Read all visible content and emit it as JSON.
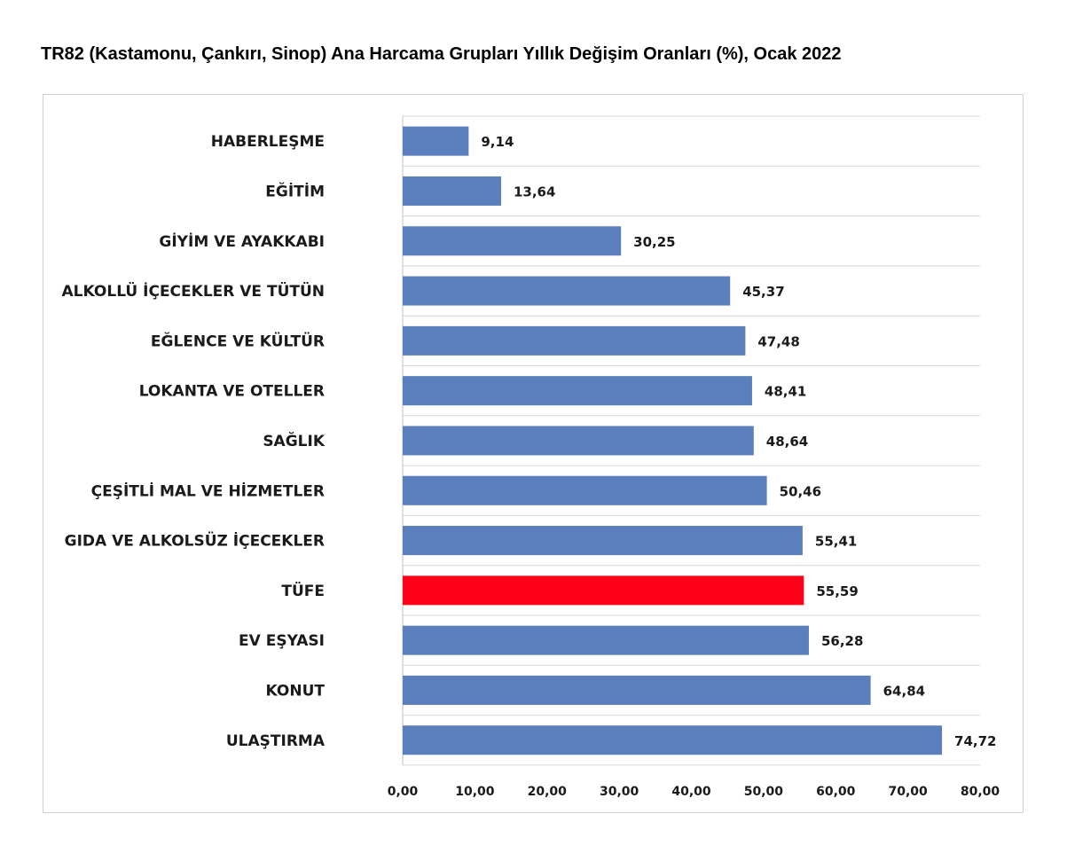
{
  "chart_data": {
    "type": "bar",
    "orientation": "horizontal",
    "title": "TR82 (Kastamonu, Çankırı, Sinop) Ana Harcama Grupları Yıllık Değişim Oranları (%), Ocak 2022",
    "categories": [
      "HABERLEŞME",
      "EĞİTİM",
      "GİYİM VE AYAKKABI",
      "ALKOLLÜ İÇECEKLER VE TÜTÜN",
      "EĞLENCE VE KÜLTÜR",
      "LOKANTA VE OTELLER",
      "SAĞLIK",
      "ÇEŞİTLİ MAL VE HİZMETLER",
      "GIDA VE ALKOLSÜZ İÇECEKLER",
      "TÜFE",
      "EV EŞYASI",
      "KONUT",
      "ULAŞTIRMA"
    ],
    "values": [
      9.14,
      13.64,
      30.25,
      45.37,
      47.48,
      48.41,
      48.64,
      50.46,
      55.41,
      55.59,
      56.28,
      64.84,
      74.72
    ],
    "value_labels": [
      "9,14",
      "13,64",
      "30,25",
      "45,37",
      "47,48",
      "48,41",
      "48,64",
      "50,46",
      "55,41",
      "55,59",
      "56,28",
      "64,84",
      "74,72"
    ],
    "highlight_category": "TÜFE",
    "xlim": [
      0,
      80
    ],
    "x_ticks": [
      "0,00",
      "10,00",
      "20,00",
      "30,00",
      "40,00",
      "50,00",
      "60,00",
      "70,00",
      "80,00"
    ],
    "xlabel": "",
    "ylabel": "",
    "grid": "horizontal",
    "colors": {
      "bar": "#5b7fbd",
      "highlight": "#ff0019",
      "grid": "#d9d9d9",
      "axis": "#bfbfbf"
    }
  }
}
